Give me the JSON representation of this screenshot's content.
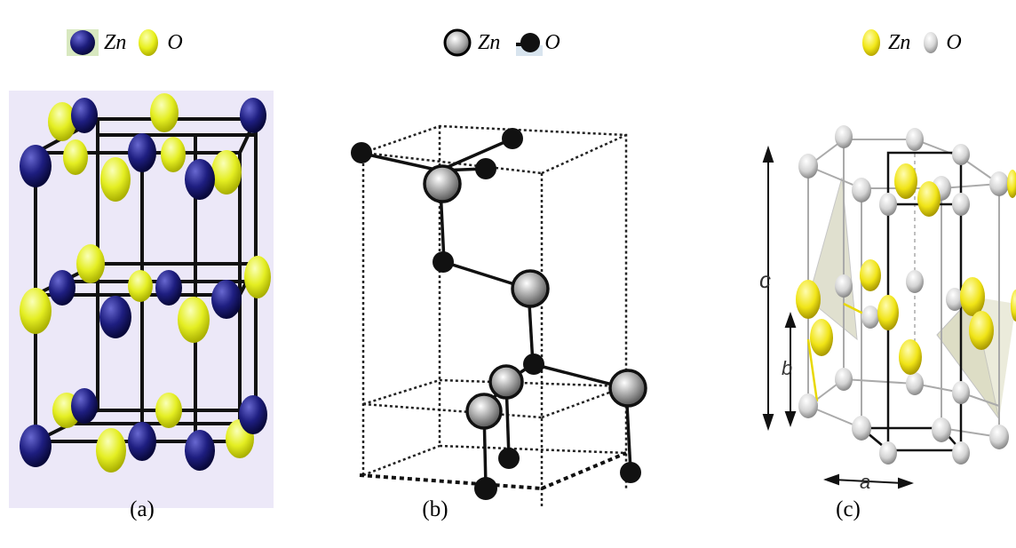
{
  "panels": [
    {
      "id": "a",
      "caption": "(a)",
      "legend": [
        {
          "symbol": "Zn",
          "color": "#1c1c7a"
        },
        {
          "symbol": "O",
          "color": "#e8f01c"
        }
      ],
      "background": "#ece8f8"
    },
    {
      "id": "b",
      "caption": "(b)",
      "legend": [
        {
          "symbol": "Zn",
          "color": "#c8c8c8"
        },
        {
          "symbol": "O",
          "color": "#111111"
        }
      ]
    },
    {
      "id": "c",
      "caption": "(c)",
      "legend": [
        {
          "symbol": "Zn",
          "color": "#f2e81a"
        },
        {
          "symbol": "O",
          "color": "#dcdcdc"
        }
      ],
      "axis_labels": {
        "a": "a",
        "b": "b",
        "c": "c"
      }
    }
  ]
}
